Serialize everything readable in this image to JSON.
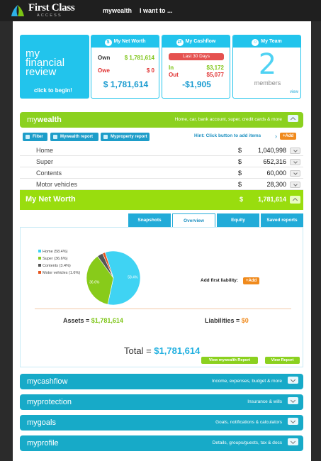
{
  "topbar": {
    "logo_main": "First Class",
    "logo_sub": "ACCESS",
    "nav": [
      "mywealth",
      "I want to ..."
    ]
  },
  "review": {
    "title_lines": [
      "my",
      "financial",
      "review"
    ],
    "cta": "click to begin!"
  },
  "net_worth_card": {
    "title": "My Net Worth",
    "icon": "dollar-icon",
    "own_label": "Own",
    "own_value": "$ 1,781,614",
    "owe_label": "Owe",
    "owe_value": "$ 0",
    "total": "$ 1,781,614"
  },
  "cashflow_card": {
    "title": "My Cashflow",
    "icon": "cashflow-icon",
    "period": "Last 30 Days",
    "in_label": "In",
    "in_value": "$3,172",
    "out_label": "Out",
    "out_value": "$5,077",
    "total": "-$1,905"
  },
  "team_card": {
    "title": "My Team",
    "icon": "team-icon",
    "count": "2",
    "label": "members",
    "view": "view"
  },
  "mywealth": {
    "title_prefix": "my",
    "title_bold": "wealth",
    "subtitle": "Home, car, bank account, super, credit cards & more"
  },
  "toolbar": {
    "filter": "Filter",
    "mywealth_report": "Mywealth report",
    "myproperty_report": "Myproperty report",
    "hint": "Hint: Click button to add items",
    "add": "+Add"
  },
  "assets": [
    {
      "name": "Home",
      "currency": "$",
      "amount": "1,040,998"
    },
    {
      "name": "Super",
      "currency": "$",
      "amount": "652,316"
    },
    {
      "name": "Contents",
      "currency": "$",
      "amount": "60,000"
    },
    {
      "name": "Motor vehicles",
      "currency": "$",
      "amount": "28,300"
    }
  ],
  "net_worth_bar": {
    "title": "My Net Worth",
    "currency": "$",
    "amount": "1,781,614"
  },
  "tabs": [
    "Snapshots",
    "Overview",
    "Equity",
    "Saved reports"
  ],
  "chart_data": {
    "type": "pie",
    "categories": [
      "Home (58.4%)",
      "Super (36.6%)",
      "Contents (3.4%)",
      "Motor vehicles (1.6%)"
    ],
    "values": [
      58.4,
      36.6,
      3.4,
      1.6
    ],
    "colors": [
      "#3fd3f3",
      "#88cb1a",
      "#555555",
      "#e6551e"
    ],
    "slice_labels": [
      "58.4%",
      "36.6%",
      "",
      ""
    ],
    "title": "",
    "legend_placement": "top-left"
  },
  "overview": {
    "add_liability_label": "Add first liability:",
    "add": "+Add",
    "assets_label": "Assets =",
    "assets_value": "$1,781,614",
    "liabilities_label": "Liabilities =",
    "liabilities_value": "$0",
    "total_label": "Total =",
    "total_value": "$1,781,614",
    "view_mywealth_report": "View mywealth Report",
    "view_report": "View Report"
  },
  "sections": [
    {
      "prefix": "my",
      "name": "cashflow",
      "subtitle": "Income, expenses, budget & more"
    },
    {
      "prefix": "my",
      "name": "protection",
      "subtitle": "Insurance & wills"
    },
    {
      "prefix": "my",
      "name": "goals",
      "subtitle": "Goals, notifications & calculators"
    },
    {
      "prefix": "my",
      "name": "profile",
      "subtitle": "Details, groups/guests, tax & docs"
    }
  ]
}
